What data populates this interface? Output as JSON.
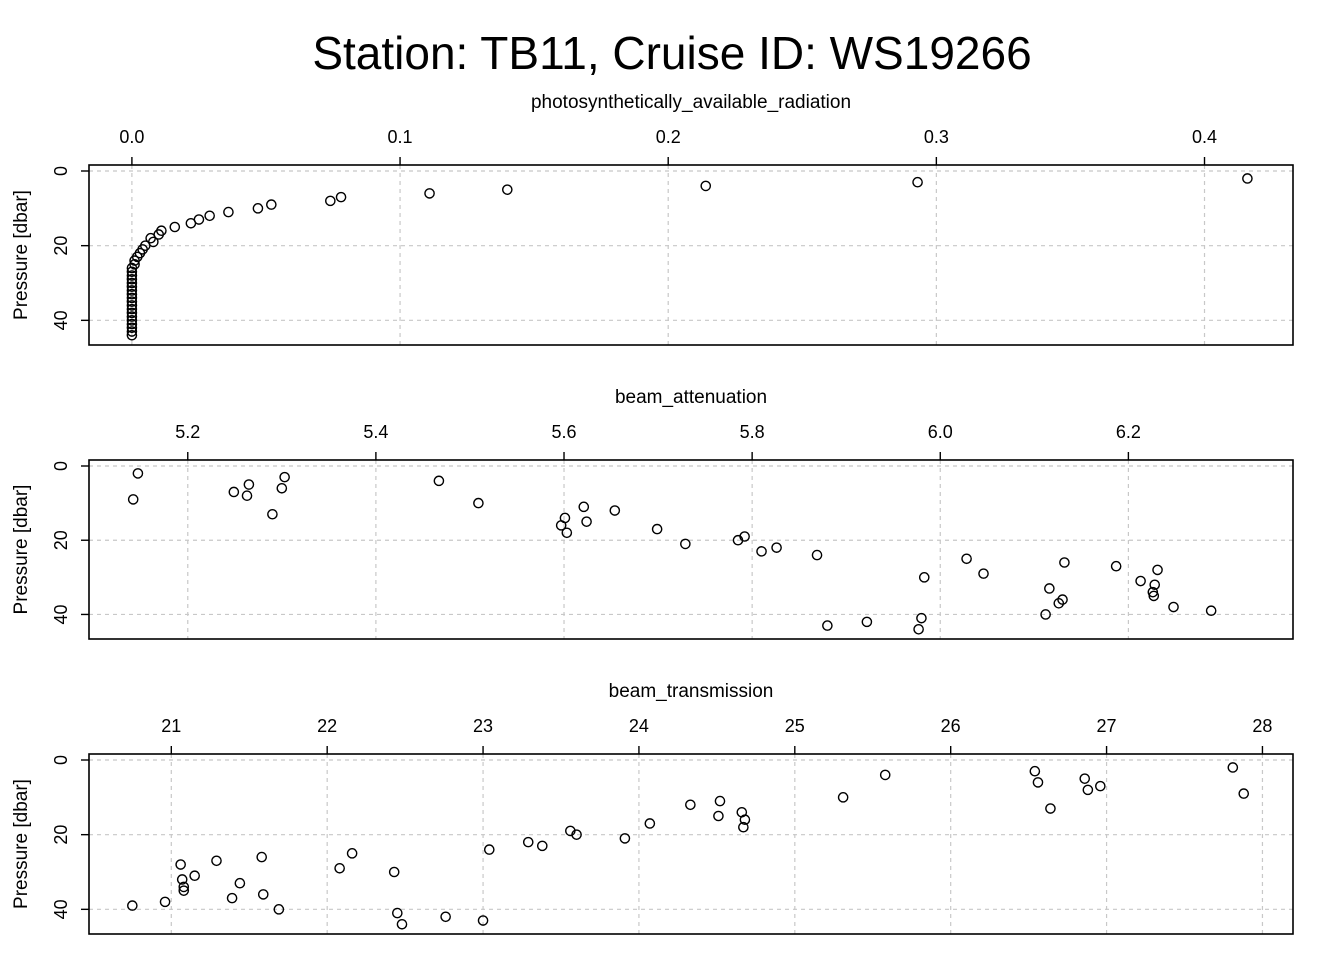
{
  "title": "Station: TB11, Cruise ID: WS19266",
  "chart_data": [
    {
      "type": "scatter",
      "xlabel": "photosynthetically_available_radiation",
      "ylabel": "Pressure [dbar]",
      "xlim": [
        -0.016,
        0.433
      ],
      "ylim": [
        0,
        45
      ],
      "y_reversed": true,
      "x_ticks": [
        0.0,
        0.1,
        0.2,
        0.3,
        0.4
      ],
      "x_tick_labels": [
        "0.0",
        "0.1",
        "0.2",
        "0.3",
        "0.4"
      ],
      "y_ticks": [
        0,
        20,
        40
      ],
      "y_tick_labels": [
        "0",
        "20",
        "40"
      ],
      "grid": true,
      "points": [
        [
          0.416,
          2
        ],
        [
          0.293,
          3
        ],
        [
          0.214,
          4
        ],
        [
          0.14,
          5
        ],
        [
          0.111,
          6
        ],
        [
          0.078,
          7
        ],
        [
          0.074,
          8
        ],
        [
          0.052,
          9
        ],
        [
          0.047,
          10
        ],
        [
          0.036,
          11
        ],
        [
          0.029,
          12
        ],
        [
          0.025,
          13
        ],
        [
          0.022,
          14
        ],
        [
          0.016,
          15
        ],
        [
          0.011,
          16
        ],
        [
          0.01,
          17
        ],
        [
          0.007,
          18
        ],
        [
          0.008,
          19
        ],
        [
          0.005,
          20
        ],
        [
          0.004,
          21
        ],
        [
          0.003,
          22
        ],
        [
          0.002,
          23
        ],
        [
          0.001,
          24
        ],
        [
          0.001,
          25
        ],
        [
          0.0,
          26
        ],
        [
          0.0,
          27
        ],
        [
          0.0,
          28
        ],
        [
          0.0,
          29
        ],
        [
          0.0,
          30
        ],
        [
          0.0,
          31
        ],
        [
          0.0,
          32
        ],
        [
          0.0,
          33
        ],
        [
          0.0,
          34
        ],
        [
          0.0,
          35
        ],
        [
          0.0,
          36
        ],
        [
          0.0,
          37
        ],
        [
          0.0,
          38
        ],
        [
          0.0,
          39
        ],
        [
          0.0,
          40
        ],
        [
          0.0,
          41
        ],
        [
          0.0,
          42
        ],
        [
          0.0,
          43
        ],
        [
          0.0,
          44
        ]
      ]
    },
    {
      "type": "scatter",
      "xlabel": "beam_attenuation",
      "ylabel": "Pressure [dbar]",
      "xlim": [
        5.095,
        6.375
      ],
      "ylim": [
        0,
        45
      ],
      "y_reversed": true,
      "x_ticks": [
        5.2,
        5.4,
        5.6,
        5.8,
        6.0,
        6.2
      ],
      "x_tick_labels": [
        "5.2",
        "5.4",
        "5.6",
        "5.8",
        "6.0",
        "6.2"
      ],
      "y_ticks": [
        0,
        20,
        40
      ],
      "y_tick_labels": [
        "0",
        "20",
        "40"
      ],
      "grid": true,
      "points": [
        [
          5.147,
          2
        ],
        [
          5.303,
          3
        ],
        [
          5.467,
          4
        ],
        [
          5.265,
          5
        ],
        [
          5.3,
          6
        ],
        [
          5.249,
          7
        ],
        [
          5.263,
          8
        ],
        [
          5.142,
          9
        ],
        [
          5.509,
          10
        ],
        [
          5.621,
          11
        ],
        [
          5.654,
          12
        ],
        [
          5.29,
          13
        ],
        [
          5.601,
          14
        ],
        [
          5.624,
          15
        ],
        [
          5.597,
          16
        ],
        [
          5.699,
          17
        ],
        [
          5.603,
          18
        ],
        [
          5.792,
          19
        ],
        [
          5.785,
          20
        ],
        [
          5.729,
          21
        ],
        [
          5.826,
          22
        ],
        [
          5.81,
          23
        ],
        [
          5.869,
          24
        ],
        [
          6.028,
          25
        ],
        [
          6.132,
          26
        ],
        [
          6.187,
          27
        ],
        [
          6.231,
          28
        ],
        [
          6.046,
          29
        ],
        [
          5.983,
          30
        ],
        [
          6.213,
          31
        ],
        [
          6.228,
          32
        ],
        [
          6.116,
          33
        ],
        [
          6.226,
          34
        ],
        [
          6.227,
          35
        ],
        [
          6.13,
          36
        ],
        [
          6.126,
          37
        ],
        [
          6.248,
          38
        ],
        [
          6.288,
          39
        ],
        [
          6.112,
          40
        ],
        [
          5.98,
          41
        ],
        [
          5.922,
          42
        ],
        [
          5.88,
          43
        ],
        [
          5.977,
          44
        ]
      ]
    },
    {
      "type": "scatter",
      "xlabel": "beam_transmission",
      "ylabel": "Pressure [dbar]",
      "xlim": [
        20.472,
        28.196
      ],
      "ylim": [
        0,
        45
      ],
      "y_reversed": true,
      "x_ticks": [
        21,
        22,
        23,
        24,
        25,
        26,
        27,
        28
      ],
      "x_tick_labels": [
        "21",
        "22",
        "23",
        "24",
        "25",
        "26",
        "27",
        "28"
      ],
      "y_ticks": [
        0,
        20,
        40
      ],
      "y_tick_labels": [
        "0",
        "20",
        "40"
      ],
      "grid": true,
      "points": [
        [
          27.81,
          2
        ],
        [
          26.54,
          3
        ],
        [
          25.58,
          4
        ],
        [
          26.86,
          5
        ],
        [
          26.56,
          6
        ],
        [
          26.96,
          7
        ],
        [
          26.88,
          8
        ],
        [
          27.88,
          9
        ],
        [
          25.31,
          10
        ],
        [
          24.52,
          11
        ],
        [
          24.33,
          12
        ],
        [
          26.64,
          13
        ],
        [
          24.66,
          14
        ],
        [
          24.51,
          15
        ],
        [
          24.68,
          16
        ],
        [
          24.07,
          17
        ],
        [
          24.67,
          18
        ],
        [
          23.56,
          19
        ],
        [
          23.6,
          20
        ],
        [
          23.91,
          21
        ],
        [
          23.29,
          22
        ],
        [
          23.38,
          23
        ],
        [
          23.04,
          24
        ],
        [
          22.16,
          25
        ],
        [
          21.58,
          26
        ],
        [
          21.29,
          27
        ],
        [
          21.06,
          28
        ],
        [
          22.08,
          29
        ],
        [
          22.43,
          30
        ],
        [
          21.15,
          31
        ],
        [
          21.07,
          32
        ],
        [
          21.44,
          33
        ],
        [
          21.08,
          34
        ],
        [
          21.08,
          35
        ],
        [
          21.59,
          36
        ],
        [
          21.39,
          37
        ],
        [
          20.96,
          38
        ],
        [
          20.75,
          39
        ],
        [
          21.69,
          40
        ],
        [
          22.45,
          41
        ],
        [
          22.76,
          42
        ],
        [
          23.0,
          43
        ],
        [
          22.48,
          44
        ]
      ]
    }
  ]
}
